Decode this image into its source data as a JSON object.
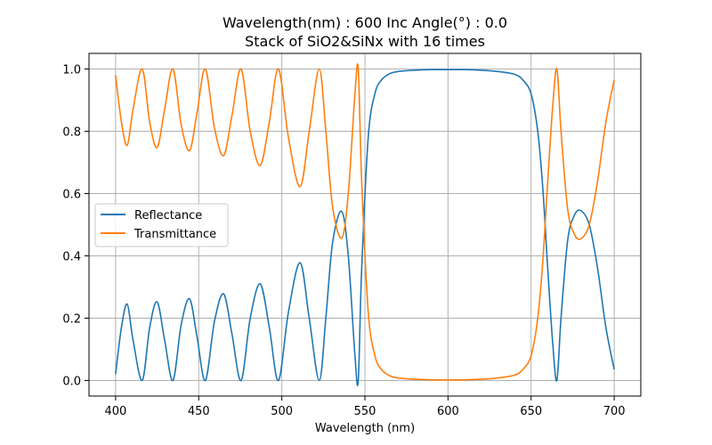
{
  "chart_data": {
    "type": "line",
    "title_line1": "Wavelength(nm) : 600   Inc Angle(°) : 0.0",
    "title_line2": "Stack of SiO2&SiNx with 16 times",
    "xlabel": "Wavelength (nm)",
    "ylabel": "",
    "xlim": [
      384,
      716
    ],
    "ylim": [
      -0.05,
      1.05
    ],
    "xticks": [
      "400",
      "450",
      "500",
      "550",
      "600",
      "650",
      "700"
    ],
    "yticks": [
      "0.0",
      "0.2",
      "0.4",
      "0.6",
      "0.8",
      "1.0"
    ],
    "grid": true,
    "legend_position": "center-left",
    "series": [
      {
        "name": "Reflectance",
        "color": "#1f77b4",
        "points": [
          [
            400,
            0.02
          ],
          [
            403.5,
            0.17
          ],
          [
            407,
            0.245
          ],
          [
            410.5,
            0.13
          ],
          [
            416,
            0.0
          ],
          [
            420.5,
            0.17
          ],
          [
            425,
            0.252
          ],
          [
            429.5,
            0.13
          ],
          [
            434.5,
            0.0
          ],
          [
            439.5,
            0.18
          ],
          [
            444.5,
            0.262
          ],
          [
            449,
            0.14
          ],
          [
            454,
            0.0
          ],
          [
            459.5,
            0.19
          ],
          [
            465,
            0.278
          ],
          [
            470,
            0.15
          ],
          [
            475.5,
            0.0
          ],
          [
            481,
            0.2
          ],
          [
            487,
            0.31
          ],
          [
            492.5,
            0.17
          ],
          [
            498,
            0.0
          ],
          [
            504,
            0.22
          ],
          [
            511,
            0.378
          ],
          [
            516.5,
            0.2
          ],
          [
            522.5,
            0.0
          ],
          [
            526.5,
            0.2
          ],
          [
            530.5,
            0.44
          ],
          [
            536,
            0.543
          ],
          [
            540,
            0.4
          ],
          [
            544,
            0.08
          ],
          [
            546,
            0.0
          ],
          [
            548,
            0.35
          ],
          [
            552,
            0.78
          ],
          [
            556,
            0.92
          ],
          [
            560,
            0.965
          ],
          [
            565,
            0.985
          ],
          [
            570,
            0.992
          ],
          [
            580,
            0.996
          ],
          [
            590,
            0.998
          ],
          [
            600,
            0.998
          ],
          [
            610,
            0.998
          ],
          [
            620,
            0.996
          ],
          [
            630,
            0.992
          ],
          [
            640,
            0.983
          ],
          [
            645,
            0.965
          ],
          [
            650,
            0.92
          ],
          [
            654,
            0.8
          ],
          [
            657,
            0.62
          ],
          [
            660,
            0.36
          ],
          [
            663,
            0.12
          ],
          [
            665.5,
            0.0
          ],
          [
            668,
            0.2
          ],
          [
            672,
            0.45
          ],
          [
            676,
            0.53
          ],
          [
            680,
            0.545
          ],
          [
            685,
            0.5
          ],
          [
            690,
            0.36
          ],
          [
            695,
            0.17
          ],
          [
            700,
            0.035
          ]
        ]
      },
      {
        "name": "Transmittance",
        "color": "#ff7f0e",
        "points": [
          [
            400,
            0.98
          ],
          [
            403.5,
            0.83
          ],
          [
            407,
            0.755
          ],
          [
            410.5,
            0.87
          ],
          [
            416,
            1.0
          ],
          [
            420.5,
            0.83
          ],
          [
            425,
            0.748
          ],
          [
            429.5,
            0.87
          ],
          [
            434.5,
            1.0
          ],
          [
            439.5,
            0.82
          ],
          [
            444.5,
            0.738
          ],
          [
            449,
            0.86
          ],
          [
            454,
            1.0
          ],
          [
            459.5,
            0.81
          ],
          [
            465,
            0.722
          ],
          [
            470,
            0.85
          ],
          [
            475.5,
            1.0
          ],
          [
            481,
            0.8
          ],
          [
            487,
            0.69
          ],
          [
            492.5,
            0.83
          ],
          [
            498,
            1.0
          ],
          [
            504,
            0.78
          ],
          [
            511,
            0.622
          ],
          [
            516.5,
            0.8
          ],
          [
            522.5,
            1.0
          ],
          [
            526.5,
            0.8
          ],
          [
            530.5,
            0.56
          ],
          [
            536,
            0.457
          ],
          [
            540,
            0.6
          ],
          [
            544,
            0.92
          ],
          [
            546,
            1.0
          ],
          [
            548,
            0.65
          ],
          [
            552,
            0.22
          ],
          [
            556,
            0.08
          ],
          [
            560,
            0.035
          ],
          [
            565,
            0.015
          ],
          [
            570,
            0.008
          ],
          [
            580,
            0.004
          ],
          [
            590,
            0.002
          ],
          [
            600,
            0.002
          ],
          [
            610,
            0.002
          ],
          [
            620,
            0.004
          ],
          [
            630,
            0.008
          ],
          [
            640,
            0.017
          ],
          [
            645,
            0.035
          ],
          [
            650,
            0.08
          ],
          [
            654,
            0.2
          ],
          [
            657,
            0.38
          ],
          [
            660,
            0.64
          ],
          [
            663,
            0.88
          ],
          [
            665.5,
            1.0
          ],
          [
            668,
            0.8
          ],
          [
            672,
            0.55
          ],
          [
            676,
            0.47
          ],
          [
            680,
            0.455
          ],
          [
            685,
            0.5
          ],
          [
            690,
            0.64
          ],
          [
            695,
            0.83
          ],
          [
            700,
            0.965
          ]
        ]
      }
    ]
  }
}
